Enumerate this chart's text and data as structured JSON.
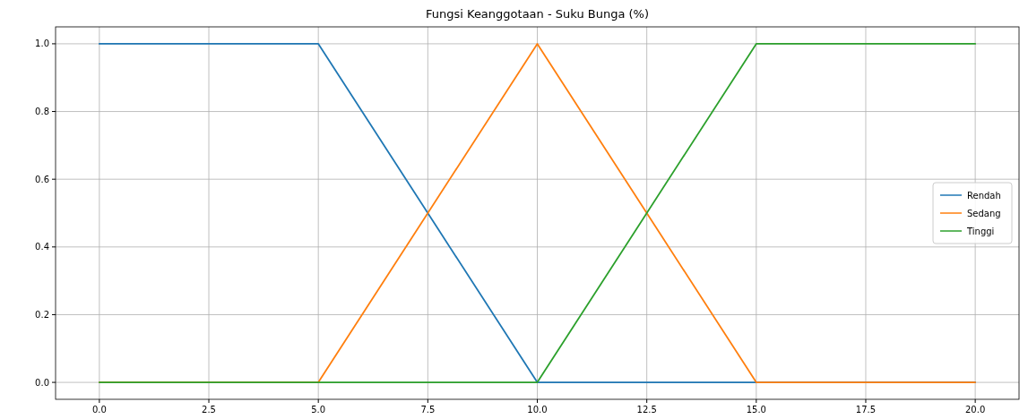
{
  "chart_data": {
    "type": "line",
    "title": "Fungsi Keanggotaan - Suku Bunga (%)",
    "xlim": [
      -1,
      21
    ],
    "xticks": [
      {
        "value": 0,
        "label": "0.0"
      },
      {
        "value": 2.5,
        "label": "2.5"
      },
      {
        "value": 5,
        "label": "5.0"
      },
      {
        "value": 7.5,
        "label": "7.5"
      },
      {
        "value": 10,
        "label": "10.0"
      },
      {
        "value": 12.5,
        "label": "12.5"
      },
      {
        "value": 15,
        "label": "15.0"
      },
      {
        "value": 17.5,
        "label": "17.5"
      },
      {
        "value": 20,
        "label": "20.0"
      }
    ],
    "ylim": [
      -0.05,
      1.05
    ],
    "yticks": [
      {
        "value": 0,
        "label": "0.0"
      },
      {
        "value": 0.2,
        "label": "0.2"
      },
      {
        "value": 0.4,
        "label": "0.4"
      },
      {
        "value": 0.6,
        "label": "0.6"
      },
      {
        "value": 0.8,
        "label": "0.8"
      },
      {
        "value": 1,
        "label": "1.0"
      }
    ],
    "grid": true,
    "legend": "right",
    "marker": "none",
    "line_style": "solid",
    "x": [
      0,
      5,
      10,
      15,
      20
    ],
    "series": [
      {
        "name": "Rendah",
        "color": "#1f77b4",
        "values": [
          1,
          1,
          0,
          0,
          0
        ]
      },
      {
        "name": "Sedang",
        "color": "#ff7f0e",
        "values": [
          0,
          0,
          1,
          0,
          0
        ]
      },
      {
        "name": "Tinggi",
        "color": "#2ca02c",
        "values": [
          0,
          0,
          0,
          1,
          1
        ]
      }
    ]
  }
}
